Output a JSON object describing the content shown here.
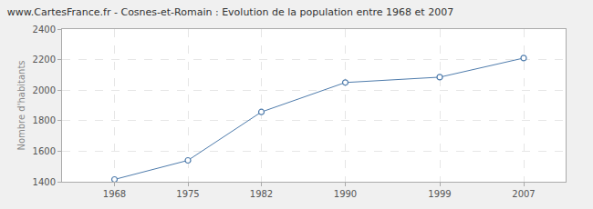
{
  "chart_data": {
    "type": "line",
    "title": "www.CartesFrance.fr - Cosnes-et-Romain : Evolution de la population entre 1968 et 2007",
    "y_label": "Nombre d'habitants",
    "x": [
      1968,
      1975,
      1982,
      1990,
      1999,
      2007
    ],
    "values": [
      1415,
      1540,
      1857,
      2050,
      2085,
      2210
    ],
    "color": "#4f7cac",
    "marker": "circle",
    "line_style": "solid",
    "xlim": [
      1963,
      2011
    ],
    "xticks": [
      1968,
      1975,
      1982,
      1990,
      1999,
      2007
    ],
    "ylim": [
      1400,
      2400
    ],
    "yticks": [
      1400,
      1600,
      1800,
      2000,
      2200,
      2400
    ],
    "grid": true
  }
}
